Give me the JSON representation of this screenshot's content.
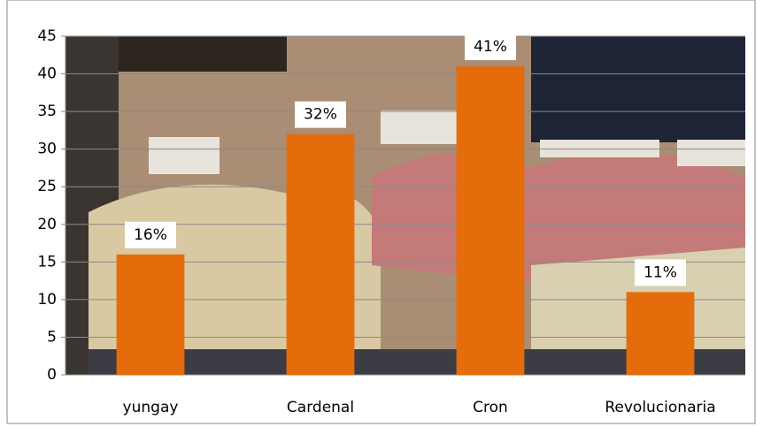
{
  "chart_data": {
    "type": "bar",
    "categories": [
      "yungay",
      "Cardenal",
      "Cron",
      "Revolucionaria"
    ],
    "values": [
      16,
      32,
      41,
      11
    ],
    "value_labels": [
      "16%",
      "32%",
      "41%",
      "11%"
    ],
    "color": "#e46c0a",
    "ylim": [
      0,
      45
    ],
    "yticks": [
      0,
      5,
      10,
      15,
      20,
      25,
      30,
      35,
      40,
      45
    ],
    "grid": true
  }
}
